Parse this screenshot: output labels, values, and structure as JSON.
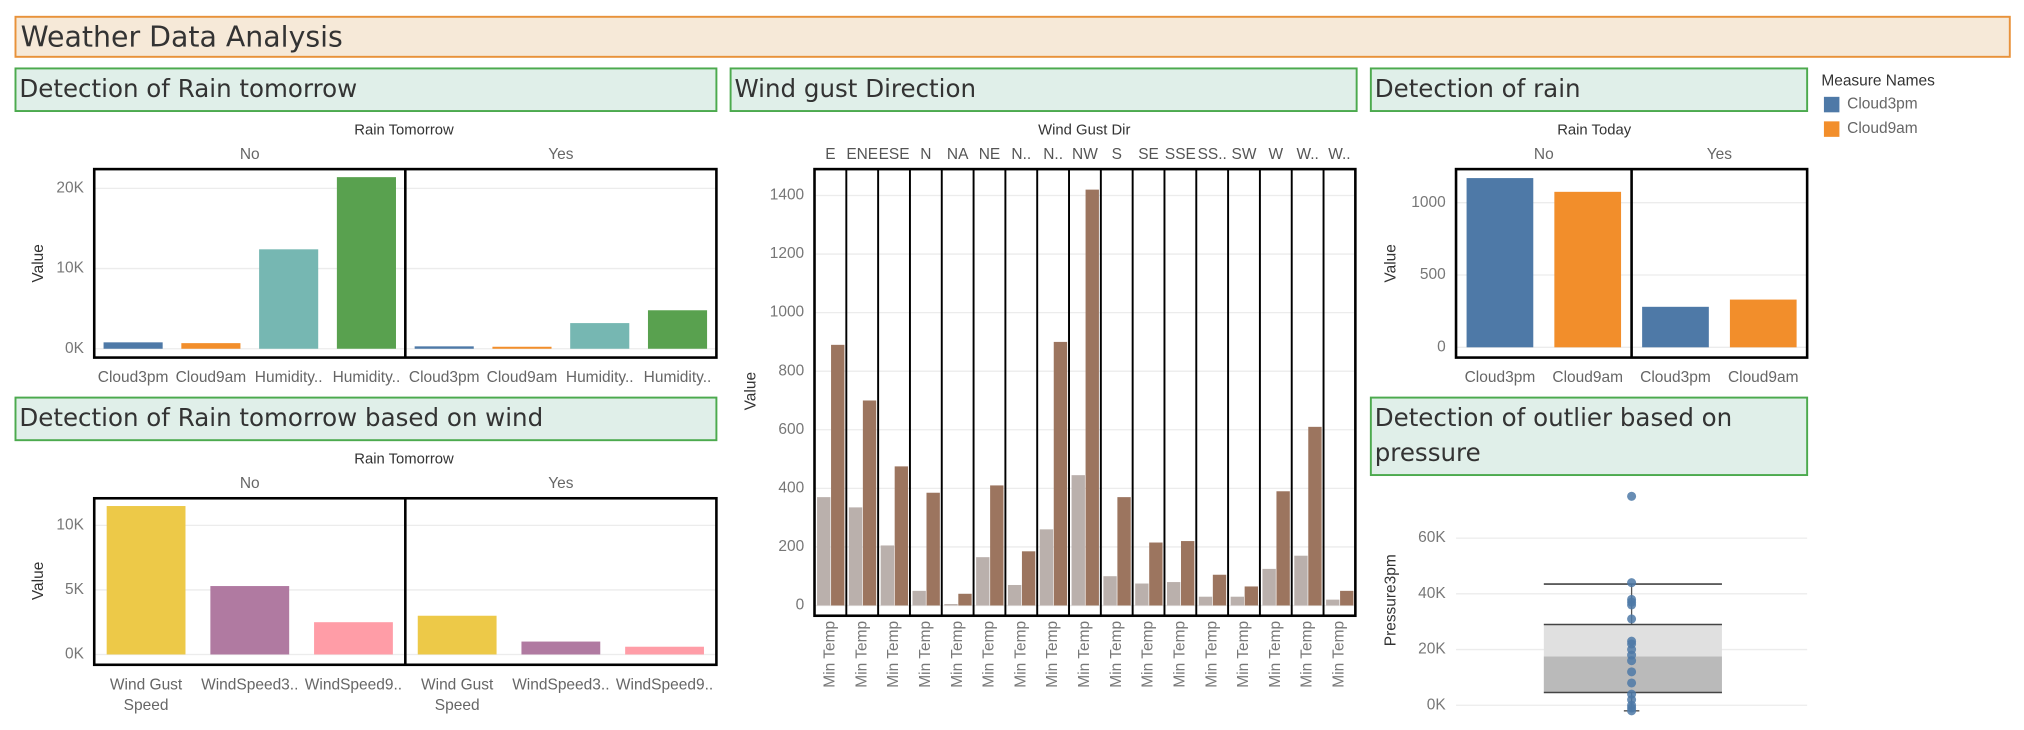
{
  "title": "Weather Data Analysis",
  "chart_data": [
    {
      "type": "bar",
      "title": "Detection of Rain tomorrow",
      "facet_label": "Rain Tomorrow",
      "y_label": "Value",
      "colors": [
        "#4e79a7",
        "#f28e2b",
        "#76b7b2",
        "#59a14f"
      ],
      "panels": [
        {
          "name": "No",
          "categories": [
            "Cloud3pm",
            "Cloud9am",
            "Humidity..",
            "Humidity.."
          ],
          "values": [
            800,
            700,
            12400,
            21400
          ]
        },
        {
          "name": "Yes",
          "categories": [
            "Cloud3pm",
            "Cloud9am",
            "Humidity..",
            "Humidity.."
          ],
          "values": [
            300,
            250,
            3200,
            4800
          ]
        }
      ],
      "ylim": [
        -1100,
        22400
      ],
      "yticks": [
        {
          "value": 0,
          "label": "0K"
        },
        {
          "value": 10000,
          "label": "10K"
        },
        {
          "value": 20000,
          "label": "20K"
        }
      ]
    },
    {
      "type": "paired-bar",
      "title": "Wind gust Direction",
      "facet_label": "Wind Gust Dir",
      "y_label": "Value",
      "x_label": "Min Temp",
      "columns": [
        "E",
        "ENE",
        "ESE",
        "N",
        "NA",
        "NE",
        "N..",
        "N..",
        "NW",
        "S",
        "SE",
        "SSE",
        "SS..",
        "SW",
        "W",
        "W..",
        "W.."
      ],
      "series": [
        {
          "color": "#bab0ac",
          "values": [
            370,
            335,
            205,
            50,
            5,
            165,
            70,
            260,
            445,
            100,
            75,
            80,
            30,
            30,
            125,
            170,
            20
          ]
        },
        {
          "color": "#9c755f",
          "values": [
            890,
            700,
            475,
            385,
            40,
            410,
            185,
            900,
            1420,
            370,
            215,
            220,
            105,
            65,
            390,
            610,
            50
          ]
        }
      ],
      "ylim": [
        -35,
        1490
      ],
      "yticks": [
        0,
        200,
        400,
        600,
        800,
        1000,
        1200,
        1400
      ]
    },
    {
      "type": "bar",
      "title": "Detection of rain",
      "facet_label": "Rain Today",
      "y_label": "Value",
      "colors": [
        "#4e79a7",
        "#f28e2b"
      ],
      "panels": [
        {
          "name": "No",
          "categories": [
            "Cloud3pm",
            "Cloud9am"
          ],
          "values": [
            1170,
            1075
          ]
        },
        {
          "name": "Yes",
          "categories": [
            "Cloud3pm",
            "Cloud9am"
          ],
          "values": [
            280,
            330
          ]
        }
      ],
      "ylim": [
        -71,
        1232
      ],
      "yticks": [
        0,
        500,
        1000
      ],
      "legend": {
        "title": "Measure Names",
        "items": [
          {
            "name": "Cloud3pm",
            "color": "#4e79a7"
          },
          {
            "name": "Cloud9am",
            "color": "#f28e2b"
          }
        ]
      }
    },
    {
      "type": "bar",
      "title": "Detection of Rain tomorrow based on wind",
      "facet_label": "Rain Tomorrow",
      "y_label": "Value",
      "colors": [
        "#edc948",
        "#b07aa1",
        "#ff9da7"
      ],
      "panels": [
        {
          "name": "No",
          "categories": [
            "Wind Gust Speed",
            "WindSpeed3..",
            "WindSpeed9.."
          ],
          "values": [
            11500,
            5300,
            2500
          ]
        },
        {
          "name": "Yes",
          "categories": [
            "Wind Gust Speed",
            "WindSpeed3..",
            "WindSpeed9.."
          ],
          "values": [
            3000,
            1000,
            600
          ]
        }
      ],
      "ylim": [
        -800,
        12100
      ],
      "yticks": [
        {
          "value": 0,
          "label": "0K"
        },
        {
          "value": 5000,
          "label": "5K"
        },
        {
          "value": 10000,
          "label": "10K"
        }
      ]
    },
    {
      "type": "box",
      "title": "Detection of outlier based on pressure",
      "y_label": "Pressure3pm",
      "color": "#4e79a7",
      "box": {
        "whisker_low": -2000,
        "q1": 4600,
        "median": 17500,
        "q3": 29000,
        "whisker_high": 43500
      },
      "points": [
        75000,
        44000,
        38000,
        37000,
        36000,
        31000,
        23000,
        22000,
        20000,
        18000,
        16000,
        12000,
        8000,
        4000,
        2000,
        0,
        -1000,
        -2000
      ],
      "ylim": [
        -4000,
        78000
      ],
      "yticks": [
        {
          "value": 0,
          "label": "0K"
        },
        {
          "value": 20000,
          "label": "20K"
        },
        {
          "value": 40000,
          "label": "40K"
        },
        {
          "value": 60000,
          "label": "60K"
        }
      ]
    }
  ]
}
